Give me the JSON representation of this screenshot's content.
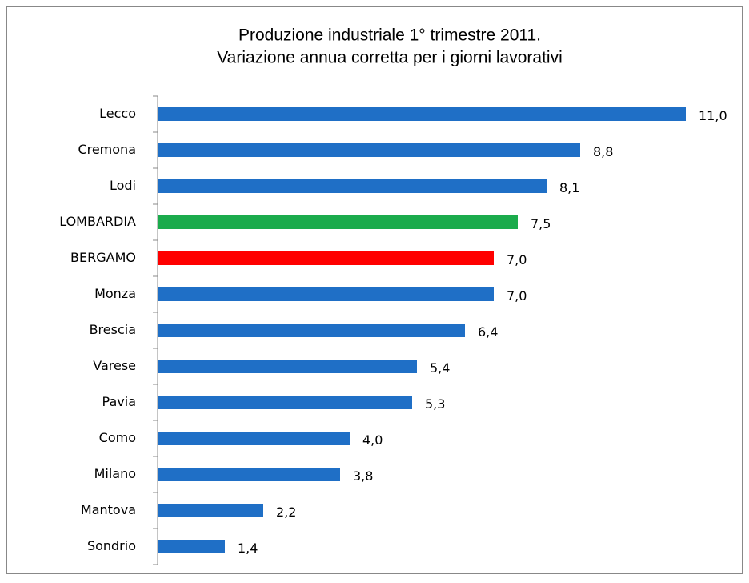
{
  "chart_data": {
    "type": "bar",
    "orientation": "horizontal",
    "title": [
      "Produzione industriale 1° trimestre 2011.",
      "Variazione annua corretta per i giorni lavorativi"
    ],
    "categories": [
      "Lecco",
      "Cremona",
      "Lodi",
      "LOMBARDIA",
      "BERGAMO",
      "Monza",
      "Brescia",
      "Varese",
      "Pavia",
      "Como",
      "Milano",
      "Mantova",
      "Sondrio"
    ],
    "values": [
      11.0,
      8.8,
      8.1,
      7.5,
      7.0,
      7.0,
      6.4,
      5.4,
      5.3,
      4.0,
      3.8,
      2.2,
      1.4
    ],
    "value_labels": [
      "11,0",
      "8,8",
      "8,1",
      "7,5",
      "7,0",
      "7,0",
      "6,4",
      "5,4",
      "5,3",
      "4,0",
      "3,8",
      "2,2",
      "1,4"
    ],
    "colors": [
      "#1f6fc6",
      "#1f6fc6",
      "#1f6fc6",
      "#1bab4c",
      "#ff0000",
      "#1f6fc6",
      "#1f6fc6",
      "#1f6fc6",
      "#1f6fc6",
      "#1f6fc6",
      "#1f6fc6",
      "#1f6fc6",
      "#1f6fc6"
    ]
  }
}
